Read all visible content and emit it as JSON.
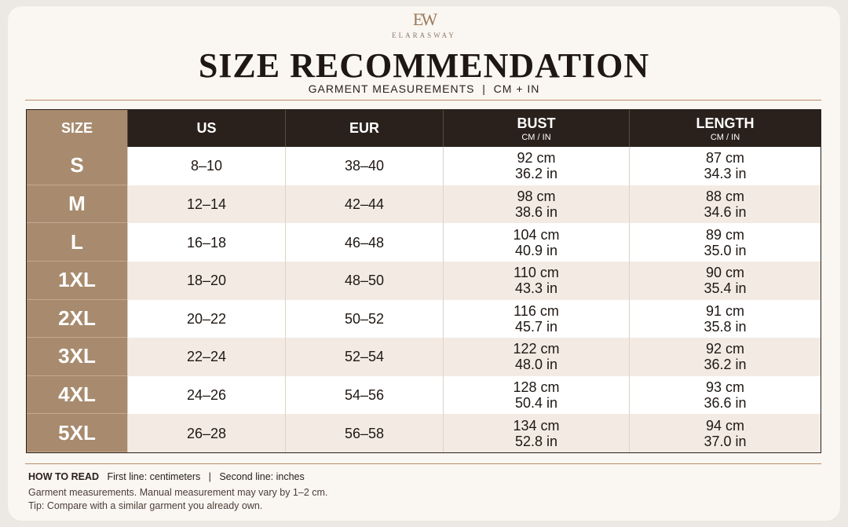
{
  "header": {
    "monogram": "EW",
    "brand": "ELARASWAY",
    "title": "SIZE RECOMMENDATION",
    "subtitle": "GARMENT MEASUREMENTS  |  CM + IN"
  },
  "table": {
    "columns": [
      {
        "label": "SIZE"
      },
      {
        "label": "US"
      },
      {
        "label": "EUR"
      },
      {
        "label": "BUST",
        "unit": "CM / IN"
      },
      {
        "label": "LENGTH",
        "unit": "CM / IN"
      }
    ],
    "rows": [
      [
        "S",
        "8–10",
        "38–40",
        "92 cm",
        "36.2 in",
        "87 cm",
        "34.3 in"
      ],
      [
        "M",
        "12–14",
        "42–44",
        "98 cm",
        "38.6 in",
        "88 cm",
        "34.6 in"
      ],
      [
        "L",
        "16–18",
        "46–48",
        "104 cm",
        "40.9 in",
        "89 cm",
        "35.0 in"
      ],
      [
        "1XL",
        "18–20",
        "48–50",
        "110 cm",
        "43.3 in",
        "90 cm",
        "35.4 in"
      ],
      [
        "2XL",
        "20–22",
        "50–52",
        "116 cm",
        "45.7 in",
        "91 cm",
        "35.8 in"
      ],
      [
        "3XL",
        "22–24",
        "52–54",
        "122 cm",
        "48.0 in",
        "92 cm",
        "36.2 in"
      ],
      [
        "4XL",
        "24–26",
        "54–56",
        "128 cm",
        "50.4 in",
        "93 cm",
        "36.6 in"
      ],
      [
        "5XL",
        "26–28",
        "56–58",
        "134 cm",
        "52.8 in",
        "94 cm",
        "37.0 in"
      ]
    ]
  },
  "footer": {
    "how_to_read": "HOW TO READ",
    "first_line": "First line: centimeters",
    "separator": "|",
    "second_line": "Second line: inches",
    "notes": [
      "Garment measurements. Manual measurement may vary by 1–2 cm.",
      "Tip: Compare with a similar garment you already own."
    ]
  }
}
